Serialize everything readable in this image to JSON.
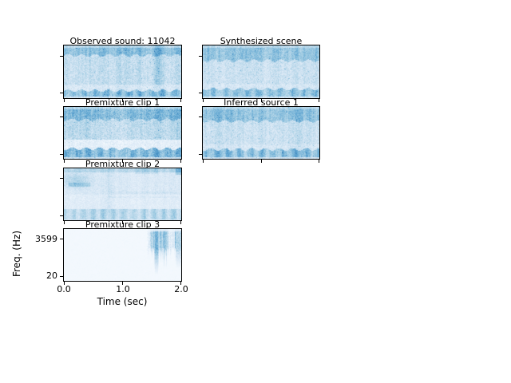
{
  "figure": {
    "background_color": "#ffffff",
    "axis_color": "#000000",
    "text_color": "#000000",
    "colormap_name": "Blues",
    "colormap_colors": {
      "low": "#f7fbff",
      "mid": "#9ecae1",
      "high": "#1a69aa"
    },
    "ylabel": "Freq. (Hz)",
    "xlabel": "Time (sec)",
    "ytick_labels": [
      "3599",
      "20"
    ],
    "xtick_labels": [
      "0.0",
      "1.0",
      "2.0"
    ],
    "panels": [
      {
        "id": "observed",
        "title": "Observed sound: 11042",
        "texture": "dense-broadband-noise"
      },
      {
        "id": "synthesized",
        "title": "Synthesized scene",
        "texture": "dense-broadband-noise"
      },
      {
        "id": "premix1",
        "title": "Premixture clip 1",
        "texture": "dense-broadband-noise"
      },
      {
        "id": "inferred1",
        "title": "Inferred source 1",
        "texture": "dense-broadband-noise"
      },
      {
        "id": "premix2",
        "title": "Premixture clip 2",
        "texture": "faint-patchy-noise"
      },
      {
        "id": "premix3",
        "title": "Premixture clip 3",
        "texture": "silent-with-late-burst"
      }
    ]
  },
  "chart_data": [
    {
      "type": "heatmap",
      "title": "Observed sound: 11042",
      "xlabel": "Time (sec)",
      "ylabel": "Freq. (Hz)",
      "x_range": [
        0.0,
        2.0
      ],
      "x_ticks": [
        0.0,
        1.0,
        2.0
      ],
      "y_ticks_hz": [
        3599,
        20
      ],
      "colormap": "Blues",
      "content_summary": "Broadband noisy spectrogram over full 2 s: dense band at high frequencies, textured mid band, strong wavy low-frequency band near bottom, darker vertical streak near t=1.6 s"
    },
    {
      "type": "heatmap",
      "title": "Synthesized scene",
      "xlabel": "Time (sec)",
      "ylabel": "Freq. (Hz)",
      "x_range": [
        0.0,
        2.0
      ],
      "x_ticks": [
        0.0,
        1.0,
        2.0
      ],
      "y_ticks_hz": [
        3599,
        20
      ],
      "colormap": "Blues",
      "content_summary": "Broadband noisy spectrogram closely matching the observed sound: smooth dense high-frequency band, medium mid band, wavy dark low-frequency band"
    },
    {
      "type": "heatmap",
      "title": "Premixture clip 1",
      "xlabel": "Time (sec)",
      "ylabel": "Freq. (Hz)",
      "x_range": [
        0.0,
        2.0
      ],
      "x_ticks": [
        0.0,
        1.0,
        2.0
      ],
      "y_ticks_hz": [
        3599,
        20
      ],
      "colormap": "Blues",
      "content_summary": "Broadband noise with dense striated high band, bright near-white gap above a strong speckled low-frequency band"
    },
    {
      "type": "heatmap",
      "title": "Inferred source 1",
      "xlabel": "Time (sec)",
      "ylabel": "Freq. (Hz)",
      "x_range": [
        0.0,
        2.0
      ],
      "x_ticks": [
        0.0,
        1.0,
        2.0
      ],
      "y_ticks_hz": [
        3599,
        20
      ],
      "colormap": "Blues",
      "content_summary": "Broadband noise closely resembling the synthesized scene panel"
    },
    {
      "type": "heatmap",
      "title": "Premixture clip 2",
      "xlabel": "Time (sec)",
      "ylabel": "Freq. (Hz)",
      "x_range": [
        0.0,
        2.0
      ],
      "x_ticks": [
        0.0,
        1.0,
        2.0
      ],
      "y_ticks_hz": [
        3599,
        20
      ],
      "colormap": "Blues",
      "content_summary": "Fainter texture overall: dark smudge in upper-left (t=0-0.5 s), faint vertical streak near t=0.75 s, faint horizontal lines mid-panel, grassy low-frequency band"
    },
    {
      "type": "heatmap",
      "title": "Premixture clip 3",
      "xlabel": "Time (sec)",
      "ylabel": "Freq. (Hz)",
      "x_range": [
        0.0,
        2.0
      ],
      "x_ticks": [
        0.0,
        1.0,
        2.0
      ],
      "y_ticks_hz": [
        3599,
        20
      ],
      "colormap": "Blues",
      "content_summary": "Mostly silent (near-white); energy burst from t=1.45-2.0 s concentrated near 3599 Hz with vertical streaks extending toward lower frequencies"
    }
  ]
}
